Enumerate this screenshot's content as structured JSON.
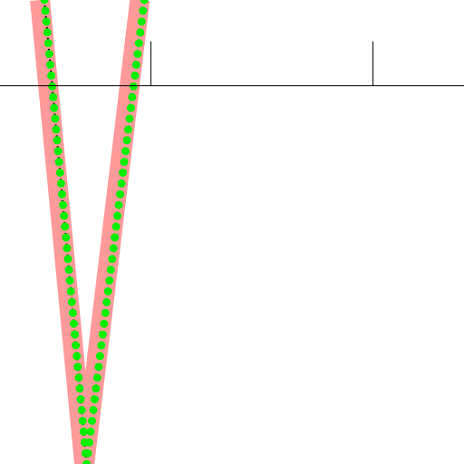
{
  "chart_data": {
    "type": "line",
    "title": "",
    "xlabel": "",
    "ylabel": "",
    "grid": false,
    "legend": "none",
    "axes": {
      "x_axis_at_y": 0,
      "ticks": [
        {
          "x": 0,
          "label": ""
        },
        {
          "x": 1,
          "label": ""
        }
      ]
    },
    "xlim": [
      -0.68,
      1.41
    ],
    "ylim": [
      -1.72,
      0.39
    ],
    "series": [
      {
        "style": "thick-band",
        "color": "#ff9a9a",
        "x": [
          -0.5,
          -0.3,
          -0.05
        ],
        "y": [
          0.39,
          -1.72,
          0.39
        ]
      },
      {
        "style": "thin-line",
        "color": "#000000",
        "x": [
          -0.48,
          -0.29
        ],
        "y": [
          0.39,
          -1.72
        ]
      },
      {
        "style": "dots",
        "color": "#00ee00",
        "x": [
          -0.48,
          -0.29
        ],
        "y": [
          0.39,
          -1.72
        ]
      },
      {
        "style": "dots",
        "color": "#00ee00",
        "x": [
          -0.29,
          -0.03
        ],
        "y": [
          -1.72,
          0.39
        ]
      }
    ],
    "colors": {
      "axis": "#000000",
      "background": "#ffffff"
    }
  }
}
